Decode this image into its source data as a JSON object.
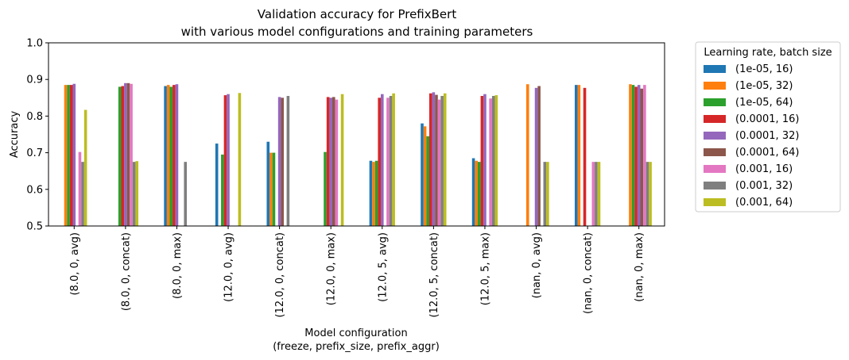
{
  "chart_data": {
    "type": "bar",
    "title": [
      "Validation accuracy for PrefixBert",
      "with various model configurations and training parameters"
    ],
    "xlabel": [
      "Model configuration",
      "(freeze, prefix_size, prefix_aggr)"
    ],
    "ylabel": "Accuracy",
    "ylim": [
      0.5,
      1.0
    ],
    "yticks": [
      "0.5",
      "0.6",
      "0.7",
      "0.8",
      "0.9",
      "1.0"
    ],
    "grid": false,
    "legend": {
      "title": "Learning rate, batch size",
      "placement": "outside-right"
    },
    "categories": [
      "(8.0, 0, avg)",
      "(8.0, 0, concat)",
      "(8.0, 0, max)",
      "(12.0, 0, avg)",
      "(12.0, 0, concat)",
      "(12.0, 0, max)",
      "(12.0, 5, avg)",
      "(12.0, 5, concat)",
      "(12.0, 5, max)",
      "(nan, 0, avg)",
      "(nan, 0, concat)",
      "(nan, 0, max)"
    ],
    "series": [
      {
        "name": "(1e-05, 16)",
        "color": "#1f77b4",
        "values": [
          null,
          null,
          0.882,
          0.725,
          0.73,
          null,
          0.678,
          0.78,
          0.685,
          null,
          0.885,
          null
        ]
      },
      {
        "name": "(1e-05, 32)",
        "color": "#ff7f0e",
        "values": [
          0.885,
          null,
          0.885,
          null,
          0.7,
          null,
          0.675,
          0.772,
          0.678,
          0.887,
          0.885,
          0.887
        ]
      },
      {
        "name": "(1e-05, 64)",
        "color": "#2ca02c",
        "values": [
          0.885,
          0.88,
          0.88,
          0.695,
          0.7,
          0.702,
          0.678,
          0.745,
          0.675,
          null,
          null,
          0.885
        ]
      },
      {
        "name": "(0.0001, 16)",
        "color": "#d62728",
        "values": [
          0.885,
          0.882,
          0.885,
          0.857,
          null,
          0.852,
          0.85,
          0.862,
          0.855,
          null,
          0.877,
          0.88
        ]
      },
      {
        "name": "(0.0001, 32)",
        "color": "#9467bd",
        "values": [
          0.888,
          0.89,
          0.887,
          0.86,
          0.852,
          0.85,
          0.86,
          0.865,
          0.86,
          0.877,
          null,
          0.885
        ]
      },
      {
        "name": "(0.0001, 64)",
        "color": "#8c564b",
        "values": [
          null,
          0.89,
          null,
          null,
          0.85,
          0.852,
          null,
          0.858,
          null,
          0.882,
          null,
          0.875
        ]
      },
      {
        "name": "(0.001, 16)",
        "color": "#e377c2",
        "values": [
          0.702,
          0.888,
          null,
          null,
          null,
          0.845,
          0.85,
          0.845,
          0.848,
          null,
          0.675,
          0.885
        ]
      },
      {
        "name": "(0.001, 32)",
        "color": "#7f7f7f",
        "values": [
          0.675,
          0.675,
          0.675,
          null,
          0.855,
          null,
          0.855,
          0.855,
          0.855,
          0.675,
          0.675,
          0.675
        ]
      },
      {
        "name": "(0.001, 64)",
        "color": "#bcbd22",
        "values": [
          0.817,
          0.677,
          null,
          0.863,
          null,
          0.86,
          0.862,
          0.862,
          0.857,
          0.675,
          0.675,
          0.675
        ]
      }
    ]
  }
}
